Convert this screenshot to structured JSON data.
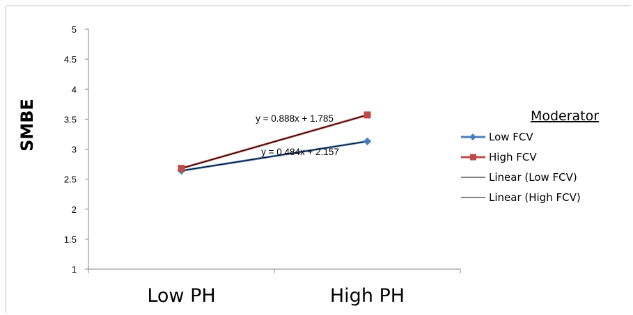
{
  "chart_data": {
    "type": "line",
    "categories": [
      "Low PH",
      "High PH"
    ],
    "ylabel": "SMBE",
    "ylim": [
      1,
      5
    ],
    "yticks": [
      "1",
      "1.5",
      "2",
      "2.5",
      "3",
      "3.5",
      "4",
      "4.5",
      "5"
    ],
    "grid": false,
    "legend_title": "Moderator",
    "legend_position": "right",
    "series": [
      {
        "name": "Low FCV",
        "values": [
          2.64,
          3.13
        ],
        "color": "#4a7ebb",
        "marker": "diamond"
      },
      {
        "name": "High FCV",
        "values": [
          2.68,
          3.57
        ],
        "color": "#be4b48",
        "marker": "square"
      }
    ],
    "trendlines": [
      {
        "name": "Linear (Low FCV)",
        "color": "#000000",
        "equation": "y = 0.484x + 2.157"
      },
      {
        "name": "Linear (High FCV)",
        "color": "#000000",
        "equation": "y = 0.888x + 1.785"
      }
    ]
  }
}
